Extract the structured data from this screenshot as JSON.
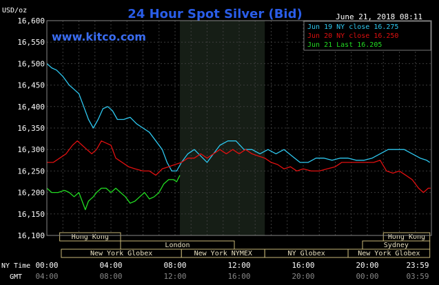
{
  "chart_data": {
    "type": "line",
    "title": "24 Hour Spot Silver (Bid)",
    "timestamp": "June 21, 2018 08:11",
    "watermark": "www.kitco.com",
    "ylabel": "USD/oz",
    "ylim": [
      16.1,
      16.6
    ],
    "yticks": [
      "16,600",
      "16,550",
      "16,500",
      "16,450",
      "16,400",
      "16,350",
      "16,300",
      "16,250",
      "16,200",
      "16,150",
      "16,100"
    ],
    "x_row_labels": {
      "ny": "NY Time",
      "gmt": "GMT"
    },
    "xticks_ny": [
      "00:00",
      "04:00",
      "08:00",
      "12:00",
      "16:00",
      "20:00",
      "23:59"
    ],
    "xticks_gmt": [
      "04:00",
      "08:00",
      "12:00",
      "16:00",
      "20:00",
      "00:00",
      "03:59"
    ],
    "legend": [
      {
        "label": "Jun 19 NY close 16.275",
        "color": "#2ec8f0"
      },
      {
        "label": "Jun 20 NY close 16.250",
        "color": "#e01010"
      },
      {
        "label": "Jun 21 Last 16.205",
        "color": "#22dd22"
      }
    ],
    "sessions_top": [
      {
        "label": "Hong Kong",
        "x0": 0.8,
        "x1": 4.6
      },
      {
        "label": "Hong Kong",
        "x0": 21.0,
        "x1": 23.9
      }
    ],
    "sessions_mid": [
      {
        "label": "London",
        "x0": 4.6,
        "x1": 11.7
      },
      {
        "label": "Sydney",
        "x0": 19.7,
        "x1": 23.9
      }
    ],
    "sessions_bottom": [
      {
        "label": "New York Globex",
        "x0": 0.9,
        "x1": 8.4
      },
      {
        "label": "New York NYMEX",
        "x0": 8.4,
        "x1": 13.6
      },
      {
        "label": "NY Globex",
        "x0": 13.6,
        "x1": 18.8
      },
      {
        "label": "New York Globex",
        "x0": 18.8,
        "x1": 23.9
      }
    ],
    "highlight_range": [
      8.3,
      13.6
    ],
    "series": [
      {
        "name": "Jun 19 NY close 16.275",
        "color": "#2ec8f0",
        "points": [
          [
            0,
            16.5
          ],
          [
            0.3,
            16.49
          ],
          [
            0.6,
            16.485
          ],
          [
            1.0,
            16.47
          ],
          [
            1.4,
            16.45
          ],
          [
            1.7,
            16.44
          ],
          [
            2.0,
            16.43
          ],
          [
            2.3,
            16.4
          ],
          [
            2.6,
            16.37
          ],
          [
            2.9,
            16.35
          ],
          [
            3.2,
            16.37
          ],
          [
            3.5,
            16.395
          ],
          [
            3.8,
            16.4
          ],
          [
            4.1,
            16.39
          ],
          [
            4.4,
            16.37
          ],
          [
            4.8,
            16.37
          ],
          [
            5.2,
            16.375
          ],
          [
            5.6,
            16.36
          ],
          [
            6.0,
            16.35
          ],
          [
            6.4,
            16.34
          ],
          [
            6.8,
            16.32
          ],
          [
            7.2,
            16.3
          ],
          [
            7.5,
            16.27
          ],
          [
            7.8,
            16.25
          ],
          [
            8.1,
            16.25
          ],
          [
            8.4,
            16.27
          ],
          [
            8.8,
            16.29
          ],
          [
            9.2,
            16.3
          ],
          [
            9.6,
            16.285
          ],
          [
            10.0,
            16.27
          ],
          [
            10.4,
            16.29
          ],
          [
            10.8,
            16.31
          ],
          [
            11.3,
            16.32
          ],
          [
            11.8,
            16.32
          ],
          [
            12.3,
            16.3
          ],
          [
            12.8,
            16.3
          ],
          [
            13.3,
            16.29
          ],
          [
            13.8,
            16.3
          ],
          [
            14.3,
            16.29
          ],
          [
            14.8,
            16.3
          ],
          [
            15.3,
            16.285
          ],
          [
            15.8,
            16.27
          ],
          [
            16.3,
            16.27
          ],
          [
            16.8,
            16.28
          ],
          [
            17.3,
            16.28
          ],
          [
            17.8,
            16.275
          ],
          [
            18.3,
            16.28
          ],
          [
            18.8,
            16.28
          ],
          [
            19.3,
            16.275
          ],
          [
            19.8,
            16.275
          ],
          [
            20.3,
            16.28
          ],
          [
            20.8,
            16.29
          ],
          [
            21.3,
            16.3
          ],
          [
            21.8,
            16.3
          ],
          [
            22.3,
            16.3
          ],
          [
            22.8,
            16.29
          ],
          [
            23.3,
            16.28
          ],
          [
            23.7,
            16.275
          ],
          [
            23.9,
            16.27
          ]
        ]
      },
      {
        "name": "Jun 20 NY close 16.250",
        "color": "#e01010",
        "points": [
          [
            0,
            16.27
          ],
          [
            0.4,
            16.27
          ],
          [
            0.8,
            16.28
          ],
          [
            1.2,
            16.29
          ],
          [
            1.6,
            16.31
          ],
          [
            1.9,
            16.32
          ],
          [
            2.2,
            16.31
          ],
          [
            2.5,
            16.3
          ],
          [
            2.8,
            16.29
          ],
          [
            3.1,
            16.3
          ],
          [
            3.4,
            16.32
          ],
          [
            3.7,
            16.315
          ],
          [
            4.0,
            16.31
          ],
          [
            4.3,
            16.28
          ],
          [
            4.7,
            16.27
          ],
          [
            5.1,
            16.26
          ],
          [
            5.5,
            16.255
          ],
          [
            6.0,
            16.25
          ],
          [
            6.4,
            16.25
          ],
          [
            6.8,
            16.24
          ],
          [
            7.2,
            16.255
          ],
          [
            7.6,
            16.26
          ],
          [
            8.0,
            16.265
          ],
          [
            8.4,
            16.27
          ],
          [
            8.8,
            16.28
          ],
          [
            9.2,
            16.28
          ],
          [
            9.6,
            16.29
          ],
          [
            10.0,
            16.28
          ],
          [
            10.4,
            16.29
          ],
          [
            10.8,
            16.3
          ],
          [
            11.2,
            16.29
          ],
          [
            11.6,
            16.3
          ],
          [
            12.0,
            16.29
          ],
          [
            12.4,
            16.3
          ],
          [
            12.8,
            16.29
          ],
          [
            13.2,
            16.285
          ],
          [
            13.6,
            16.28
          ],
          [
            14.0,
            16.27
          ],
          [
            14.4,
            16.265
          ],
          [
            14.8,
            16.255
          ],
          [
            15.2,
            16.26
          ],
          [
            15.6,
            16.25
          ],
          [
            16.0,
            16.255
          ],
          [
            16.5,
            16.25
          ],
          [
            17.0,
            16.25
          ],
          [
            17.5,
            16.255
          ],
          [
            18.0,
            16.26
          ],
          [
            18.4,
            16.27
          ],
          [
            18.8,
            16.27
          ],
          [
            19.2,
            16.27
          ],
          [
            19.6,
            16.27
          ],
          [
            20.0,
            16.27
          ],
          [
            20.4,
            16.27
          ],
          [
            20.8,
            16.275
          ],
          [
            21.2,
            16.25
          ],
          [
            21.6,
            16.245
          ],
          [
            22.0,
            16.25
          ],
          [
            22.4,
            16.24
          ],
          [
            22.8,
            16.23
          ],
          [
            23.2,
            16.21
          ],
          [
            23.5,
            16.2
          ],
          [
            23.8,
            16.21
          ],
          [
            23.95,
            16.21
          ]
        ]
      },
      {
        "name": "Jun 21 Last 16.205",
        "color": "#22dd22",
        "points": [
          [
            0,
            16.21
          ],
          [
            0.3,
            16.2
          ],
          [
            0.7,
            16.2
          ],
          [
            1.1,
            16.205
          ],
          [
            1.4,
            16.2
          ],
          [
            1.7,
            16.19
          ],
          [
            2.0,
            16.2
          ],
          [
            2.2,
            16.18
          ],
          [
            2.4,
            16.16
          ],
          [
            2.6,
            16.18
          ],
          [
            2.9,
            16.19
          ],
          [
            3.1,
            16.2
          ],
          [
            3.4,
            16.21
          ],
          [
            3.7,
            16.21
          ],
          [
            4.0,
            16.2
          ],
          [
            4.3,
            16.21
          ],
          [
            4.6,
            16.2
          ],
          [
            4.9,
            16.19
          ],
          [
            5.2,
            16.175
          ],
          [
            5.5,
            16.18
          ],
          [
            5.8,
            16.19
          ],
          [
            6.1,
            16.2
          ],
          [
            6.4,
            16.185
          ],
          [
            6.7,
            16.19
          ],
          [
            7.0,
            16.2
          ],
          [
            7.3,
            16.22
          ],
          [
            7.6,
            16.23
          ],
          [
            7.9,
            16.23
          ],
          [
            8.1,
            16.225
          ],
          [
            8.3,
            16.24
          ]
        ]
      }
    ]
  }
}
